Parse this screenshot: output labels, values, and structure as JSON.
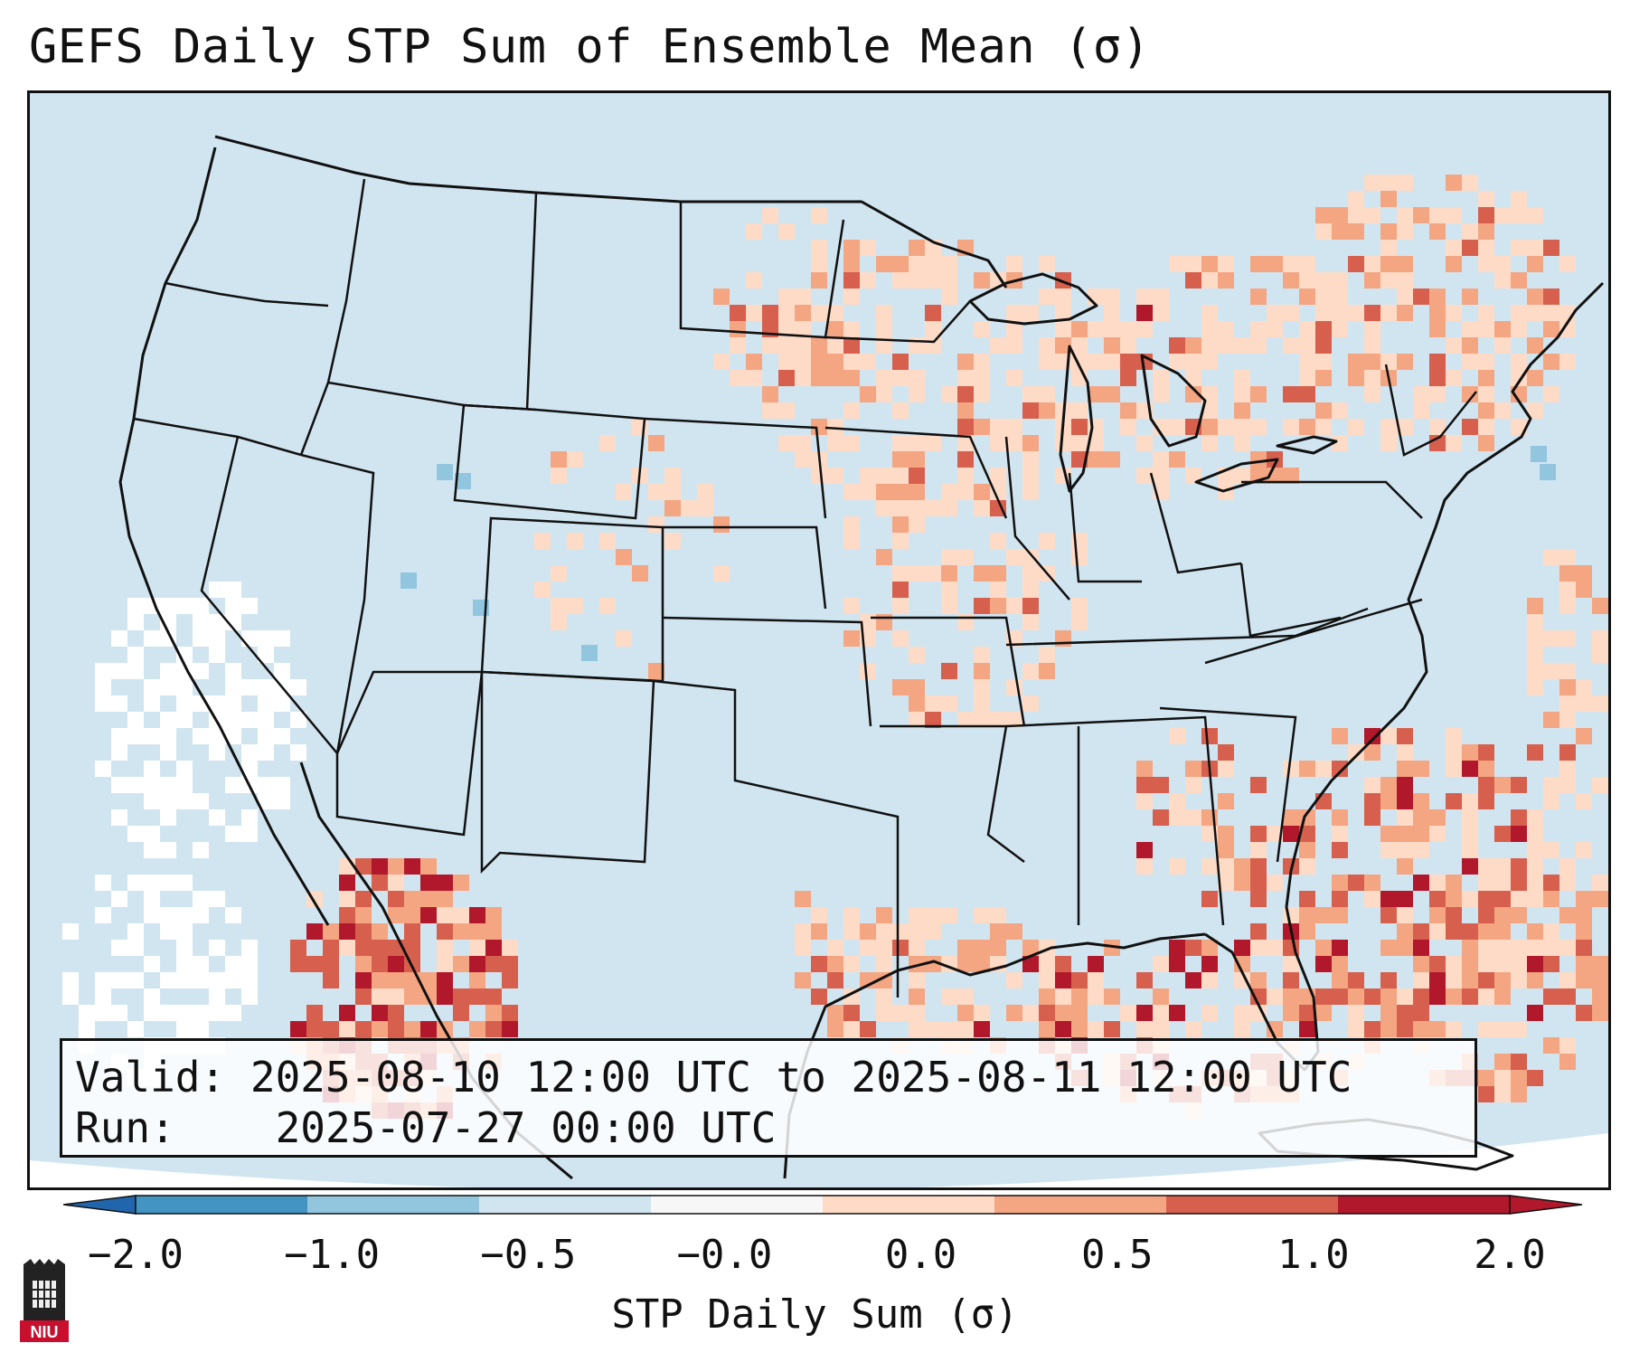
{
  "title": "GEFS Daily STP Sum of Ensemble Mean (σ)",
  "info": {
    "valid_label": "Valid:",
    "valid_value": "2025-08-10 12:00 UTC to 2025-08-11 12:00 UTC",
    "run_label": "Run:",
    "run_value": "2025-07-27 00:00 UTC"
  },
  "colorbar": {
    "label": "STP Daily Sum (σ)",
    "ticks": [
      "−2.0",
      "−1.0",
      "−0.5",
      "−0.0",
      "0.0",
      "0.5",
      "1.0",
      "2.0"
    ],
    "colors": [
      "#4393c3",
      "#92c5de",
      "#d1e5f0",
      "#f7f7f7",
      "#fddbc7",
      "#f4a582",
      "#d6604d",
      "#b2182b"
    ],
    "extend_low_color": "#2166ac",
    "extend_high_color": "#b2182b"
  },
  "logo": {
    "text": "NIU",
    "color": "#c8102e"
  },
  "palette": {
    "ocean": "#d1e5f0",
    "neutral": "#ffffff",
    "light_pos": "#fddbc7",
    "mid_pos": "#f4a582",
    "high_pos": "#d6604d",
    "max_pos": "#b2182b",
    "light_neg": "#92c5de"
  }
}
